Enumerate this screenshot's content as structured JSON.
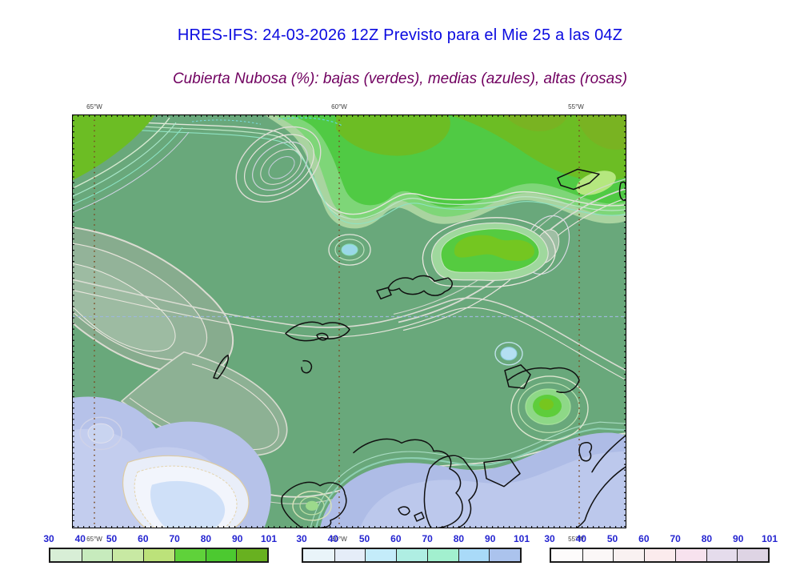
{
  "header": {
    "title": "HRES-IFS: 24-03-2026 12Z Previsto para el Mie 25 a las 04Z",
    "title_color": "#0a0ae0",
    "subtitle": "Cubierta Nubosa (%): bajas (verdes), medias (azules), altas (rosas)",
    "subtitle_color": "#700060"
  },
  "map": {
    "top_axis_labels": [
      "65°W",
      "60°W",
      "55°W"
    ],
    "bottom_axis_labels": [
      "65°W",
      "60°W",
      "55°W"
    ],
    "palette": {
      "background_green": "#69a87b",
      "bright_low_cloud_green": "#50ca44",
      "chartreuse_low_cloud": "#6cbd24",
      "mid_cloud_lavender": "#b6c2e9",
      "high_cloud_gray": "#87ac8e",
      "meridian_gridline": "#7a4a22",
      "parallel_gridline": "#9db8d8",
      "coastline": "#101010"
    }
  },
  "legend": {
    "tick_labels": [
      "30",
      "40",
      "50",
      "60",
      "70",
      "80",
      "90",
      "101"
    ],
    "tick_label_color": "#2424d0",
    "bars": [
      {
        "name": "low-clouds-colorbar",
        "variable": "bajas (verdes)",
        "colors": [
          "#d8eed6",
          "#c7ebbd",
          "#c8e9a3",
          "#bce27a",
          "#5fd23a",
          "#4cc930",
          "#68b120"
        ]
      },
      {
        "name": "mid-clouds-colorbar",
        "variable": "medias (azules)",
        "colors": [
          "#e9f4f9",
          "#e5edf8",
          "#c4ecfa",
          "#afeee3",
          "#a2f0cf",
          "#a9daf8",
          "#abc3ed"
        ]
      },
      {
        "name": "high-clouds-colorbar",
        "variable": "altas (rosas)",
        "colors": [
          "#fdfbfb",
          "#fbf7f7",
          "#f9f1f1",
          "#fbebed",
          "#f7e2ee",
          "#e5dcec",
          "#ded4e4"
        ]
      }
    ]
  }
}
